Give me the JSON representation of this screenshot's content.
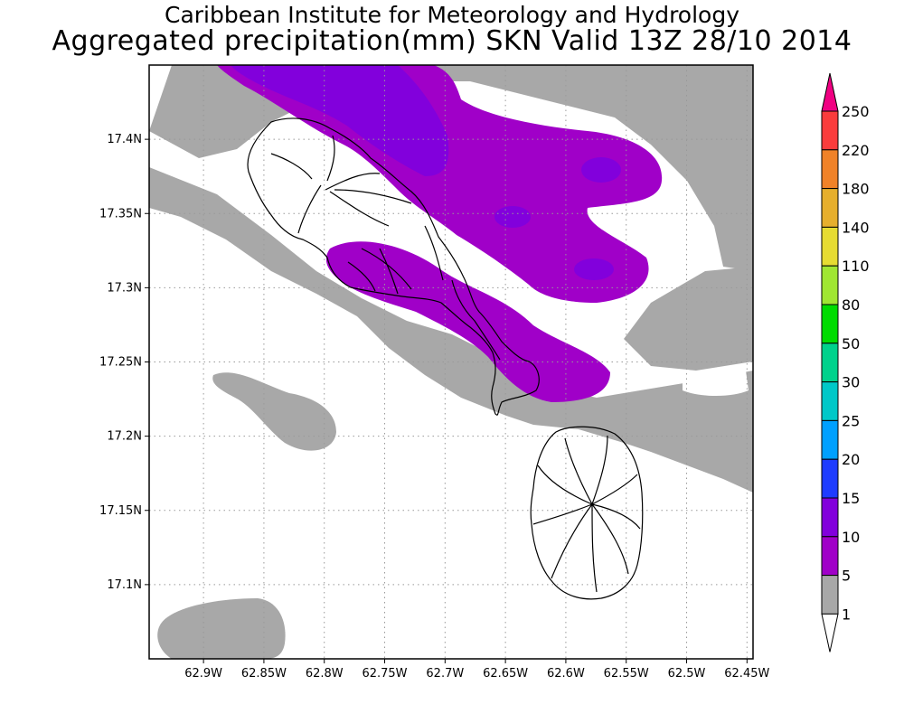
{
  "header": {
    "title": "Caribbean Institute for Meteorology and Hydrology",
    "subtitle": "Aggregated precipitation(mm) SKN Valid 13Z 28/10 2014"
  },
  "map": {
    "region": "St. Kitts and Nevis",
    "lon_range": [
      -62.945,
      -62.445
    ],
    "lat_range": [
      17.05,
      17.45
    ],
    "lat_ticks": [
      {
        "value": 17.4,
        "label": "17.4N"
      },
      {
        "value": 17.35,
        "label": "17.35N"
      },
      {
        "value": 17.3,
        "label": "17.3N"
      },
      {
        "value": 17.25,
        "label": "17.25N"
      },
      {
        "value": 17.2,
        "label": "17.2N"
      },
      {
        "value": 17.15,
        "label": "17.15N"
      },
      {
        "value": 17.1,
        "label": "17.1N"
      }
    ],
    "lon_ticks": [
      {
        "value": -62.9,
        "label": "62.9W"
      },
      {
        "value": -62.85,
        "label": "62.85W"
      },
      {
        "value": -62.8,
        "label": "62.8W"
      },
      {
        "value": -62.75,
        "label": "62.75W"
      },
      {
        "value": -62.7,
        "label": "62.7W"
      },
      {
        "value": -62.65,
        "label": "62.65W"
      },
      {
        "value": -62.6,
        "label": "62.6W"
      },
      {
        "value": -62.55,
        "label": "62.55W"
      },
      {
        "value": -62.5,
        "label": "62.5W"
      },
      {
        "value": -62.45,
        "label": "62.45W"
      }
    ],
    "grid": "dotted",
    "colors": {
      "land_outline": "#000000",
      "shade_1_5": "#a8a8a8",
      "shade_5_10": "#a000c8",
      "shade_10_15": "#8200dc"
    }
  },
  "colorbar": {
    "levels": [
      {
        "label": "250",
        "color": "#f01e3c"
      },
      {
        "label": "220",
        "color": "#fa3c3c"
      },
      {
        "label": "180",
        "color": "#f08228"
      },
      {
        "label": "140",
        "color": "#e6af2d"
      },
      {
        "label": "110",
        "color": "#e6dc32"
      },
      {
        "label": "80",
        "color": "#a0e632"
      },
      {
        "label": "50",
        "color": "#00dc00"
      },
      {
        "label": "30",
        "color": "#00d28c"
      },
      {
        "label": "25",
        "color": "#00c8c8"
      },
      {
        "label": "20",
        "color": "#00a0ff"
      },
      {
        "label": "15",
        "color": "#1e3cff"
      },
      {
        "label": "10",
        "color": "#8200dc"
      },
      {
        "label": "5",
        "color": "#a000c8"
      },
      {
        "label": "1",
        "color": "#a8a8a8"
      }
    ],
    "top_color": "#f00082",
    "bottom_color": "#ffffff"
  }
}
